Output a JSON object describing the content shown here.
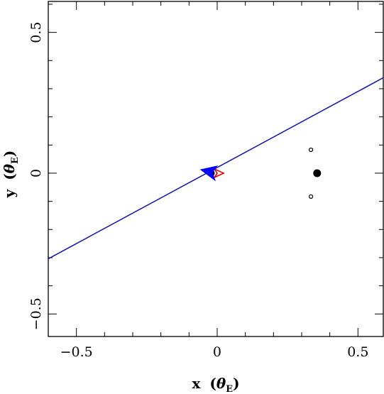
{
  "chart_data": {
    "type": "scatter",
    "title": "",
    "xlabel": {
      "main": "x",
      "open": "(",
      "theta": "θ",
      "sub": "E",
      "close": ")"
    },
    "ylabel": {
      "main": "y",
      "open": "(",
      "theta": "θ",
      "sub": "E",
      "close": ")"
    },
    "xlim": [
      -0.6,
      0.59
    ],
    "ylim": [
      -0.58,
      0.61
    ],
    "xticks_major": [
      {
        "value": -0.5,
        "label": "−0.5"
      },
      {
        "value": 0,
        "label": "0"
      },
      {
        "value": 0.5,
        "label": "0.5"
      }
    ],
    "yticks_major": [
      {
        "value": -0.5,
        "label": "−0.5"
      },
      {
        "value": 0,
        "label": "0"
      },
      {
        "value": 0.5,
        "label": "0.5"
      }
    ],
    "minor_tick_step": 0.1,
    "grid": false,
    "line": {
      "color": "#1a1aaa",
      "points": [
        {
          "x": -0.6,
          "y": -0.304
        },
        {
          "x": 0.59,
          "y": 0.339
        }
      ]
    },
    "source_arrow": {
      "color": "#0000ff",
      "x": -0.028,
      "y": 0.0
    },
    "source_marker": {
      "color": "#e00000",
      "x": 0.0,
      "y": 0.0
    },
    "lens_masses": [
      {
        "x": -0.02,
        "y": 0.0,
        "size": "medium",
        "filled": true
      },
      {
        "x": 0.355,
        "y": 0.0,
        "size": "large",
        "filled": true
      }
    ],
    "images": [
      {
        "x": 0.333,
        "y": 0.083,
        "filled": false
      },
      {
        "x": 0.333,
        "y": -0.083,
        "filled": false
      }
    ]
  }
}
